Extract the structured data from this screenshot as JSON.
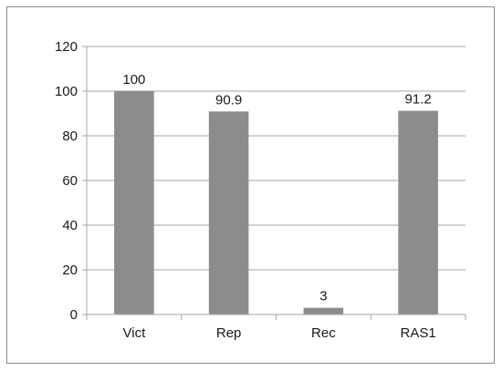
{
  "chart_data": {
    "type": "bar",
    "categories": [
      "Vict",
      "Rep",
      "Rec",
      "RAS1"
    ],
    "values": [
      100,
      90.9,
      3,
      91.2
    ],
    "data_labels": [
      "100",
      "90.9",
      "3",
      "91.2"
    ],
    "y_ticks": [
      "0",
      "20",
      "40",
      "60",
      "80",
      "100",
      "120"
    ],
    "ylim": [
      0,
      120
    ],
    "grid": true,
    "legend": "none",
    "bar_color": "#8c8c8c",
    "grid_color": "#a6a6a6"
  }
}
